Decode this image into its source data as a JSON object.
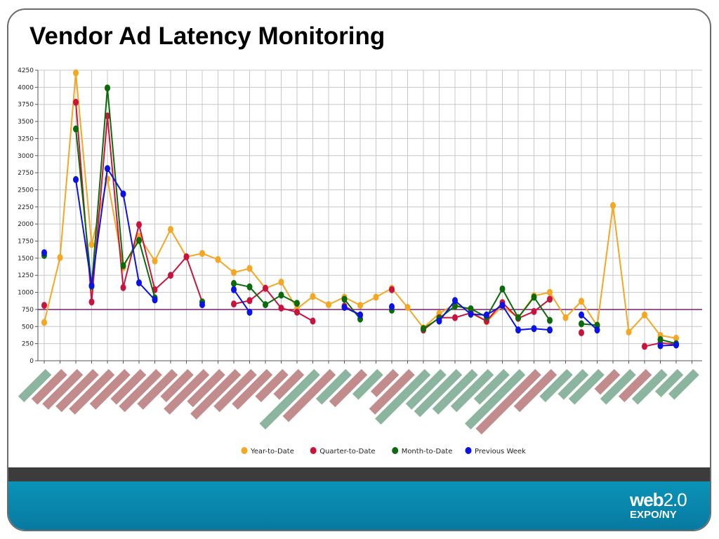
{
  "slide": {
    "title": "Vendor Ad Latency Monitoring",
    "logo": {
      "brand": "web",
      "version": "2.0",
      "event": "EXPO",
      "city": "NY"
    }
  },
  "colors": {
    "year_to_date": "#f5a623",
    "quarter_to_date": "#c8143c",
    "month_to_date": "#0b6b0b",
    "previous_week": "#0a12e6",
    "threshold_line": "#7a1f6e",
    "grid": "#c8c8c8",
    "label_red": "#b87878",
    "label_green": "#78a88e"
  },
  "chart_data": {
    "type": "line",
    "title": "",
    "xlabel": "",
    "ylabel": "",
    "ylim": [
      0,
      4250
    ],
    "yticks": [
      0,
      250,
      500,
      750,
      1000,
      1250,
      1500,
      1750,
      2000,
      2250,
      2500,
      2750,
      3000,
      3250,
      3500,
      3750,
      4000,
      4250
    ],
    "x_count": 42,
    "grid": true,
    "legend_position": "bottom-center",
    "threshold": 750,
    "x_labels_legible": false,
    "x_label_status": [
      "green",
      "red",
      "red",
      "red",
      "red",
      "red",
      "red",
      "red",
      "red",
      "red",
      "red",
      "red",
      "red",
      "red",
      "red",
      "red",
      "red",
      "green",
      "red",
      "green",
      "red",
      "green",
      "red",
      "red",
      "green",
      "green",
      "green",
      "green",
      "green",
      "green",
      "green",
      "red",
      "red",
      "green",
      "green",
      "green",
      "red",
      "green",
      "red",
      "green",
      "green",
      "green"
    ],
    "series": [
      {
        "name": "Year-to-Date",
        "values": [
          560,
          1510,
          4210,
          1700,
          2660,
          1360,
          1820,
          1460,
          1920,
          1520,
          1570,
          1480,
          1290,
          1350,
          1060,
          1150,
          760,
          940,
          820,
          930,
          810,
          930,
          1060,
          780,
          480,
          690,
          830,
          730,
          570,
          800,
          630,
          950,
          1000,
          630,
          870,
          510,
          2270,
          420,
          670,
          370,
          330,
          null
        ]
      },
      {
        "name": "Quarter-to-Date",
        "values": [
          810,
          null,
          3780,
          860,
          3580,
          1070,
          1990,
          1040,
          1250,
          1520,
          860,
          null,
          830,
          880,
          1060,
          770,
          710,
          580,
          null,
          800,
          670,
          null,
          1040,
          null,
          450,
          630,
          630,
          700,
          580,
          850,
          620,
          720,
          900,
          null,
          410,
          null,
          null,
          null,
          210,
          260,
          240,
          null
        ]
      },
      {
        "name": "Month-to-Date",
        "values": [
          1540,
          null,
          3390,
          1090,
          3990,
          1390,
          1760,
          920,
          null,
          null,
          860,
          null,
          1130,
          1080,
          820,
          960,
          840,
          null,
          null,
          900,
          610,
          null,
          740,
          null,
          470,
          620,
          800,
          760,
          640,
          1050,
          630,
          930,
          590,
          null,
          540,
          520,
          null,
          null,
          null,
          310,
          250,
          null
        ]
      },
      {
        "name": "Previous Week",
        "values": [
          1580,
          null,
          2650,
          1100,
          2810,
          2440,
          1140,
          890,
          null,
          null,
          820,
          null,
          1040,
          710,
          null,
          null,
          null,
          null,
          null,
          780,
          670,
          null,
          790,
          null,
          null,
          580,
          880,
          680,
          670,
          810,
          450,
          470,
          450,
          null,
          670,
          450,
          null,
          null,
          null,
          220,
          230,
          null
        ]
      }
    ]
  }
}
